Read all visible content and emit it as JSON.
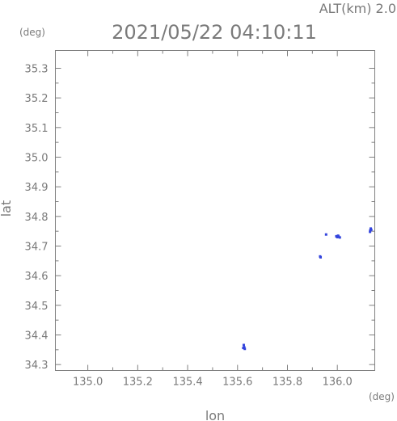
{
  "header": {
    "altitude_label": "ALT(km) 2.0",
    "timestamp": "2021/05/22 04:10:11"
  },
  "chart_data": {
    "type": "scatter",
    "xlabel": "lon",
    "ylabel": "lat",
    "x_unit": "(deg)",
    "y_unit": "(deg)",
    "xlim": [
      134.87,
      136.15
    ],
    "ylim": [
      34.28,
      35.36
    ],
    "x_ticks": [
      135.0,
      135.2,
      135.4,
      135.6,
      135.8,
      136.0
    ],
    "x_tick_labels": [
      "135.0",
      "135.2",
      "135.4",
      "135.6",
      "135.8",
      "136.0"
    ],
    "y_ticks": [
      34.3,
      34.4,
      34.5,
      34.6,
      34.7,
      34.8,
      34.9,
      35.0,
      35.1,
      35.2,
      35.3
    ],
    "y_tick_labels": [
      "34.3",
      "34.4",
      "34.5",
      "34.6",
      "34.7",
      "34.8",
      "34.9",
      "35.0",
      "35.1",
      "35.2",
      "35.3"
    ],
    "grid": false,
    "point_color": "#3344dd",
    "points": [
      {
        "x": 135.623,
        "y": 34.356
      },
      {
        "x": 135.627,
        "y": 34.358
      },
      {
        "x": 135.629,
        "y": 34.353
      },
      {
        "x": 135.625,
        "y": 34.366
      },
      {
        "x": 135.931,
        "y": 34.665
      },
      {
        "x": 135.933,
        "y": 34.662
      },
      {
        "x": 135.955,
        "y": 34.739
      },
      {
        "x": 135.996,
        "y": 34.733
      },
      {
        "x": 136.0,
        "y": 34.73
      },
      {
        "x": 136.005,
        "y": 34.732
      },
      {
        "x": 136.01,
        "y": 34.729
      },
      {
        "x": 136.003,
        "y": 34.735
      },
      {
        "x": 136.132,
        "y": 34.753
      },
      {
        "x": 136.134,
        "y": 34.759
      },
      {
        "x": 136.131,
        "y": 34.748
      },
      {
        "x": 136.136,
        "y": 34.755
      }
    ]
  }
}
